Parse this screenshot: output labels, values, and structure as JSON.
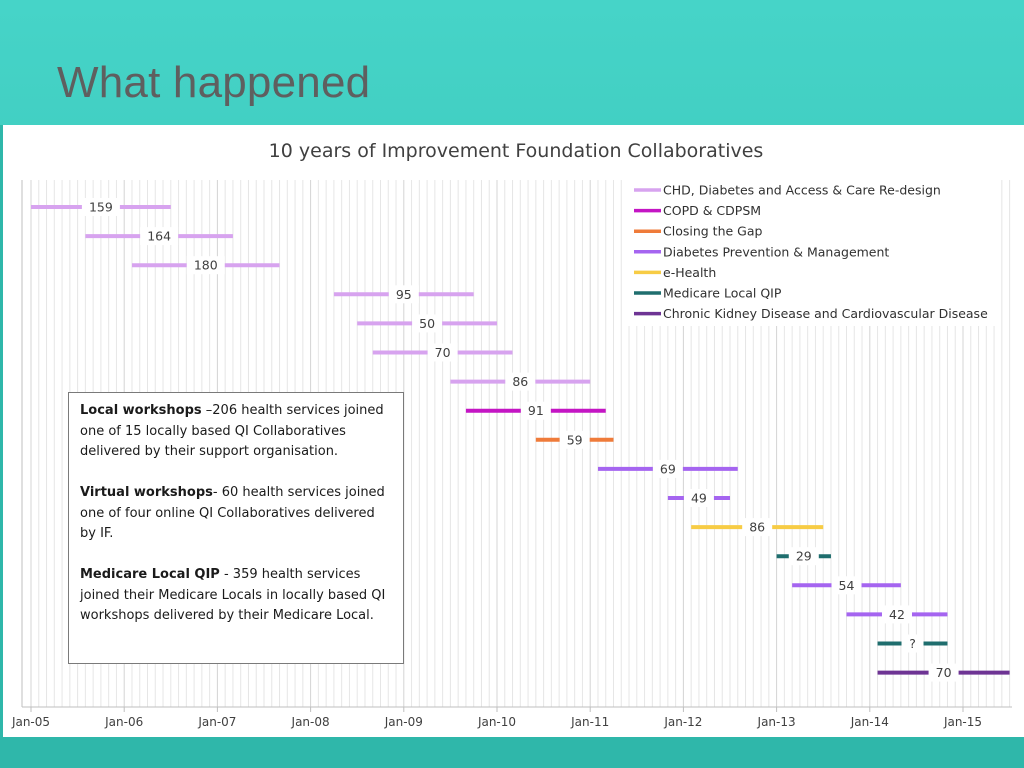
{
  "slide": {
    "title": "What happened"
  },
  "annotation": {
    "items": [
      {
        "heading": "Local workshops",
        "text": " –206 health services joined one of 15 locally based QI Collaboratives delivered by their support organisation."
      },
      {
        "heading": "Virtual workshops",
        "text": "- 60 health services joined one of four online QI Collaboratives delivered by IF."
      },
      {
        "heading": "Medicare Local QIP",
        "text": " - 359 health services joined their Medicare Locals in locally based QI workshops delivered by their Medicare Local."
      }
    ]
  },
  "chart_data": {
    "type": "gantt",
    "title": "10 years of Improvement Foundation Collaboratives",
    "x_axis": {
      "ticks": [
        "Jan-05",
        "Jan-06",
        "Jan-07",
        "Jan-08",
        "Jan-09",
        "Jan-10",
        "Jan-11",
        "Jan-12",
        "Jan-13",
        "Jan-14",
        "Jan-15"
      ],
      "range": [
        "2005-01",
        "2015-07"
      ],
      "minor_gridlines": "monthly",
      "grid": true
    },
    "legend_position": "top-right",
    "series": [
      {
        "name": "CHD, Diabetes and Access & Care Re-design",
        "color": "#d7a3ef"
      },
      {
        "name": "COPD & CDPSM",
        "color": "#c415c4"
      },
      {
        "name": "Closing the Gap",
        "color": "#ef7b3a"
      },
      {
        "name": "Diabetes Prevention & Management",
        "color": "#a565f0"
      },
      {
        "name": "e-Health",
        "color": "#f7cc45"
      },
      {
        "name": "Medicare Local QIP",
        "color": "#1f6e6e"
      },
      {
        "name": "Chronic Kidney Disease and Cardiovascular Disease",
        "color": "#6e3494"
      }
    ],
    "bars": [
      {
        "label": "159",
        "series": 0,
        "start": "2005-01",
        "end": "2006-07"
      },
      {
        "label": "164",
        "series": 0,
        "start": "2005-08",
        "end": "2007-03"
      },
      {
        "label": "180",
        "series": 0,
        "start": "2006-02",
        "end": "2007-09"
      },
      {
        "label": "95",
        "series": 0,
        "start": "2008-04",
        "end": "2009-10"
      },
      {
        "label": "50",
        "series": 0,
        "start": "2008-07",
        "end": "2010-01"
      },
      {
        "label": "70",
        "series": 0,
        "start": "2008-09",
        "end": "2010-03"
      },
      {
        "label": "86",
        "series": 0,
        "start": "2009-07",
        "end": "2011-01"
      },
      {
        "label": "91",
        "series": 1,
        "start": "2009-09",
        "end": "2011-03"
      },
      {
        "label": "59",
        "series": 2,
        "start": "2010-06",
        "end": "2011-04"
      },
      {
        "label": "69",
        "series": 3,
        "start": "2011-02",
        "end": "2012-08"
      },
      {
        "label": "49",
        "series": 3,
        "start": "2011-11",
        "end": "2012-07"
      },
      {
        "label": "86",
        "series": 4,
        "start": "2012-02",
        "end": "2013-07"
      },
      {
        "label": "29",
        "series": 5,
        "start": "2013-01",
        "end": "2013-08"
      },
      {
        "label": "54",
        "series": 3,
        "start": "2013-03",
        "end": "2014-05"
      },
      {
        "label": "42",
        "series": 3,
        "start": "2013-10",
        "end": "2014-11"
      },
      {
        "label": "?",
        "series": 5,
        "start": "2014-02",
        "end": "2014-11"
      },
      {
        "label": "70",
        "series": 6,
        "start": "2014-02",
        "end": "2015-07"
      }
    ]
  }
}
